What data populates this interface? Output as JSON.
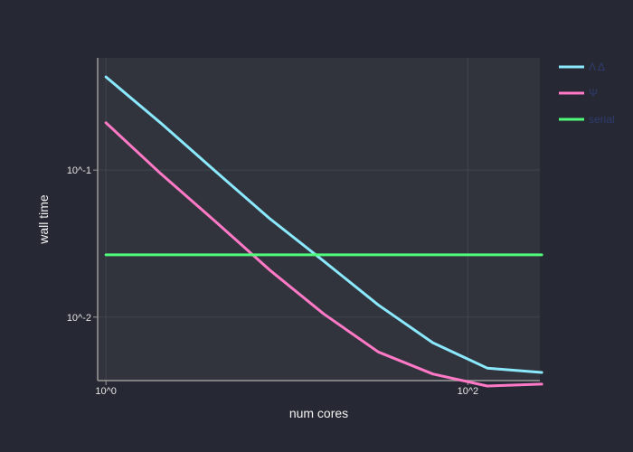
{
  "chart_data": {
    "type": "line",
    "title": "",
    "xlabel": "num cores",
    "ylabel": "wall time",
    "x_scale": "log",
    "y_scale": "log",
    "xlim": [
      0.9,
      250
    ],
    "ylim": [
      0.0037,
      0.58
    ],
    "x_ticks": [
      {
        "value": 1,
        "label": "10^0"
      },
      {
        "value": 100,
        "label": "10^2"
      }
    ],
    "y_ticks": [
      {
        "value": 0.1,
        "label": "10^-1"
      },
      {
        "value": 0.01,
        "label": "10^-2"
      }
    ],
    "grid": true,
    "legend_position": "top-right",
    "legend_text_color": "#2f3b6e",
    "series": [
      {
        "name": "Λ Δ",
        "color": "#8be9fd",
        "x": [
          1,
          2,
          4,
          8,
          16,
          32,
          64,
          128,
          256
        ],
        "y": [
          0.43,
          0.21,
          0.099,
          0.047,
          0.024,
          0.0121,
          0.0067,
          0.0045,
          0.0042
        ]
      },
      {
        "name": "Ψ",
        "color": "#ff79c6",
        "x": [
          1,
          2,
          4,
          8,
          16,
          32,
          64,
          128,
          256
        ],
        "y": [
          0.21,
          0.095,
          0.045,
          0.021,
          0.0105,
          0.0058,
          0.0041,
          0.0034,
          0.0035
        ]
      },
      {
        "name": "serial",
        "color": "#50fa7b",
        "x": [
          1,
          256
        ],
        "y": [
          0.0265,
          0.0265
        ]
      }
    ]
  }
}
